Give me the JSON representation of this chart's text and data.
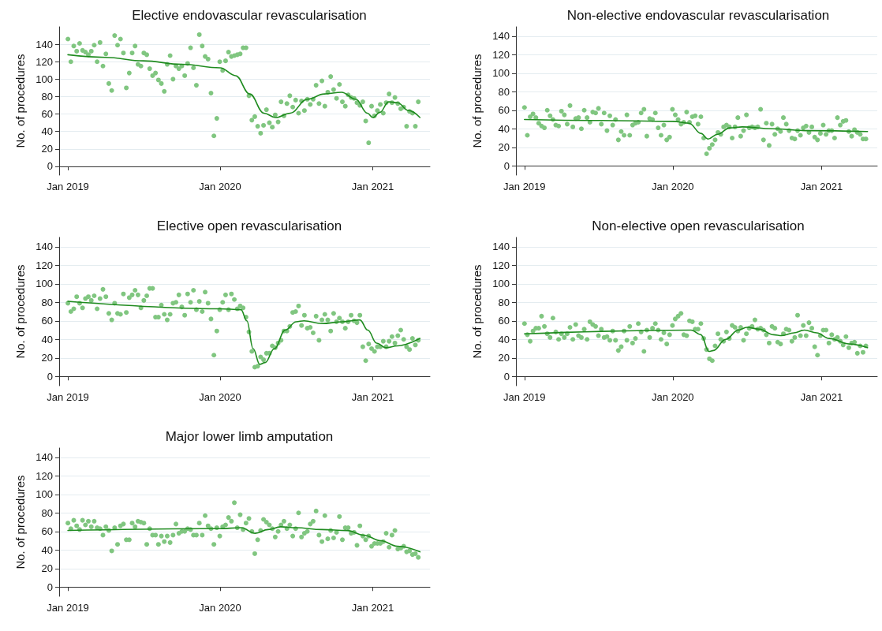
{
  "chart_data": [
    {
      "type": "scatter",
      "title": "Elective endovascular revascularisation",
      "ylabel": "No. of procedures",
      "xlim": [
        "2018-12-11",
        "2021-05-18"
      ],
      "ylim": [
        -10,
        160
      ],
      "yticks": [
        0,
        20,
        40,
        60,
        80,
        100,
        120,
        140
      ],
      "xticks": [
        {
          "value": "2019-01-01",
          "label": "Jan 2019"
        },
        {
          "value": "2020-01-01",
          "label": "Jan 2020"
        },
        {
          "value": "2021-01-01",
          "label": "Jan 2021"
        }
      ],
      "grid": "y",
      "marker": "circle",
      "x": [
        "2019-01-01",
        "2019-01-08",
        "2019-01-15",
        "2019-01-22",
        "2019-01-29",
        "2019-02-05",
        "2019-02-12",
        "2019-02-19",
        "2019-02-26",
        "2019-03-05",
        "2019-03-12",
        "2019-03-19",
        "2019-03-26",
        "2019-04-02",
        "2019-04-09",
        "2019-04-16",
        "2019-04-23",
        "2019-04-30",
        "2019-05-07",
        "2019-05-14",
        "2019-05-21",
        "2019-05-28",
        "2019-06-04",
        "2019-06-11",
        "2019-06-18",
        "2019-06-25",
        "2019-07-02",
        "2019-07-09",
        "2019-07-16",
        "2019-07-23",
        "2019-07-30",
        "2019-08-06",
        "2019-08-13",
        "2019-08-20",
        "2019-08-27",
        "2019-09-03",
        "2019-09-10",
        "2019-09-17",
        "2019-09-24",
        "2019-10-01",
        "2019-10-08",
        "2019-10-15",
        "2019-10-22",
        "2019-10-29",
        "2019-11-05",
        "2019-11-12",
        "2019-11-19",
        "2019-11-26",
        "2019-12-03",
        "2019-12-10",
        "2019-12-17",
        "2019-12-24",
        "2019-12-31",
        "2020-01-07",
        "2020-01-14",
        "2020-01-21",
        "2020-01-28",
        "2020-02-04",
        "2020-02-11",
        "2020-02-18",
        "2020-02-25",
        "2020-03-03",
        "2020-03-10",
        "2020-03-17",
        "2020-03-24",
        "2020-03-31",
        "2020-04-07",
        "2020-04-14",
        "2020-04-21",
        "2020-04-28",
        "2020-05-05",
        "2020-05-12",
        "2020-05-19",
        "2020-05-26",
        "2020-06-02",
        "2020-06-09",
        "2020-06-16",
        "2020-06-23",
        "2020-06-30",
        "2020-07-07",
        "2020-07-14",
        "2020-07-21",
        "2020-07-28",
        "2020-08-04",
        "2020-08-11",
        "2020-08-18",
        "2020-08-25",
        "2020-09-01",
        "2020-09-08",
        "2020-09-15",
        "2020-09-22",
        "2020-09-29",
        "2020-10-06",
        "2020-10-13",
        "2020-10-20",
        "2020-10-27",
        "2020-11-03",
        "2020-11-10",
        "2020-11-17",
        "2020-11-24",
        "2020-12-01",
        "2020-12-08",
        "2020-12-15",
        "2020-12-22",
        "2020-12-29",
        "2021-01-05",
        "2021-01-12",
        "2021-01-19",
        "2021-01-26",
        "2021-02-02",
        "2021-02-09",
        "2021-02-16",
        "2021-02-23",
        "2021-03-02",
        "2021-03-09",
        "2021-03-16",
        "2021-03-23",
        "2021-03-30",
        "2021-04-06",
        "2021-04-13",
        "2021-04-20"
      ],
      "series": [
        {
          "color": "#80c680",
          "values": [
            146,
            120,
            138,
            132,
            141,
            133,
            131,
            128,
            132,
            139,
            120,
            142,
            115,
            129,
            95,
            87,
            150,
            139,
            146,
            130,
            90,
            107,
            130,
            138,
            117,
            115,
            130,
            128,
            112,
            104,
            107,
            99,
            95,
            86,
            117,
            127,
            100,
            115,
            112,
            115,
            104,
            118,
            136,
            113,
            93,
            151,
            138,
            126,
            123,
            84,
            35,
            55,
            120,
            110,
            121,
            131,
            126,
            127,
            128,
            129,
            136,
            136,
            81,
            53,
            57,
            46,
            38,
            47,
            65,
            50,
            45,
            59,
            51,
            74,
            58,
            72,
            81,
            68,
            76,
            61,
            75,
            64,
            77,
            71,
            77,
            93,
            72,
            98,
            69,
            85,
            103,
            88,
            78,
            94,
            74,
            69,
            82,
            79,
            78,
            73,
            70,
            74,
            52,
            27,
            69,
            58,
            64,
            71,
            61,
            73,
            83,
            73,
            79,
            72,
            66,
            68,
            46,
            63,
            61,
            46,
            74
          ]
        },
        {
          "type": "line",
          "marker": "none",
          "color": "#1f8b1f",
          "x": [
            "2019-01-01",
            "2019-04-01",
            "2019-07-01",
            "2019-10-01",
            "2020-01-01",
            "2020-02-07",
            "2020-03-12",
            "2020-04-15",
            "2020-05-13",
            "2020-06-17",
            "2020-07-28",
            "2020-09-07",
            "2020-10-18",
            "2020-11-21",
            "2020-12-19",
            "2021-01-01",
            "2021-01-18",
            "2021-02-08",
            "2021-03-01",
            "2021-03-28",
            "2021-04-24"
          ],
          "values": [
            128,
            125,
            121,
            117,
            113,
            104,
            83,
            61,
            56,
            61,
            77,
            83,
            85,
            77,
            61,
            56,
            62,
            74,
            73,
            64,
            56
          ]
        }
      ]
    },
    {
      "type": "scatter",
      "title": "Non-elective endovascular revascularisation",
      "ylabel": "No. of procedures",
      "xlim": [
        "2018-12-11",
        "2021-05-18"
      ],
      "ylim": [
        -10,
        150
      ],
      "yticks": [
        0,
        20,
        40,
        60,
        80,
        100,
        120,
        140
      ],
      "xticks": [
        {
          "value": "2019-01-01",
          "label": "Jan 2019"
        },
        {
          "value": "2020-01-01",
          "label": "Jan 2020"
        },
        {
          "value": "2021-01-01",
          "label": "Jan 2021"
        }
      ],
      "grid": "y",
      "marker": "circle",
      "x": [
        "2019-01-01",
        "2019-01-08",
        "2019-01-15",
        "2019-01-22",
        "2019-01-29",
        "2019-02-05",
        "2019-02-12",
        "2019-02-19",
        "2019-02-26",
        "2019-03-05",
        "2019-03-12",
        "2019-03-19",
        "2019-03-26",
        "2019-04-02",
        "2019-04-09",
        "2019-04-16",
        "2019-04-23",
        "2019-04-30",
        "2019-05-07",
        "2019-05-14",
        "2019-05-21",
        "2019-05-28",
        "2019-06-04",
        "2019-06-11",
        "2019-06-18",
        "2019-06-25",
        "2019-07-02",
        "2019-07-09",
        "2019-07-16",
        "2019-07-23",
        "2019-07-30",
        "2019-08-06",
        "2019-08-13",
        "2019-08-20",
        "2019-08-27",
        "2019-09-03",
        "2019-09-10",
        "2019-09-17",
        "2019-09-24",
        "2019-10-01",
        "2019-10-08",
        "2019-10-15",
        "2019-10-22",
        "2019-10-29",
        "2019-11-05",
        "2019-11-12",
        "2019-11-19",
        "2019-11-26",
        "2019-12-03",
        "2019-12-10",
        "2019-12-17",
        "2019-12-24",
        "2019-12-31",
        "2020-01-07",
        "2020-01-14",
        "2020-01-21",
        "2020-01-28",
        "2020-02-04",
        "2020-02-11",
        "2020-02-18",
        "2020-02-25",
        "2020-03-03",
        "2020-03-10",
        "2020-03-17",
        "2020-03-24",
        "2020-03-31",
        "2020-04-07",
        "2020-04-14",
        "2020-04-21",
        "2020-04-28",
        "2020-05-05",
        "2020-05-12",
        "2020-05-19",
        "2020-05-26",
        "2020-06-02",
        "2020-06-09",
        "2020-06-16",
        "2020-06-23",
        "2020-06-30",
        "2020-07-07",
        "2020-07-14",
        "2020-07-21",
        "2020-07-28",
        "2020-08-04",
        "2020-08-11",
        "2020-08-18",
        "2020-08-25",
        "2020-09-01",
        "2020-09-08",
        "2020-09-15",
        "2020-09-22",
        "2020-09-29",
        "2020-10-06",
        "2020-10-13",
        "2020-10-20",
        "2020-10-27",
        "2020-11-03",
        "2020-11-10",
        "2020-11-17",
        "2020-11-24",
        "2020-12-01",
        "2020-12-08",
        "2020-12-15",
        "2020-12-22",
        "2020-12-29",
        "2021-01-05",
        "2021-01-12",
        "2021-01-19",
        "2021-01-26",
        "2021-02-02",
        "2021-02-09",
        "2021-02-16",
        "2021-02-23",
        "2021-03-02",
        "2021-03-09",
        "2021-03-16",
        "2021-03-23",
        "2021-03-30",
        "2021-04-06",
        "2021-04-13",
        "2021-04-20"
      ],
      "series": [
        {
          "color": "#80c680",
          "values": [
            63,
            33,
            53,
            56,
            52,
            46,
            43,
            41,
            60,
            54,
            50,
            44,
            43,
            59,
            55,
            45,
            65,
            42,
            51,
            52,
            40,
            60,
            52,
            47,
            58,
            57,
            62,
            45,
            57,
            38,
            54,
            44,
            50,
            28,
            37,
            33,
            55,
            33,
            44,
            46,
            47,
            57,
            61,
            32,
            51,
            50,
            57,
            41,
            33,
            44,
            28,
            31,
            61,
            55,
            50,
            45,
            47,
            58,
            47,
            53,
            54,
            45,
            53,
            30,
            13,
            19,
            23,
            28,
            36,
            34,
            42,
            44,
            42,
            30,
            42,
            52,
            32,
            38,
            55,
            41,
            42,
            41,
            42,
            61,
            28,
            46,
            22,
            45,
            34,
            40,
            37,
            52,
            45,
            38,
            30,
            29,
            38,
            33,
            41,
            43,
            36,
            42,
            31,
            28,
            35,
            44,
            34,
            38,
            38,
            30,
            52,
            44,
            48,
            49,
            37,
            32,
            39,
            36,
            34,
            29,
            29
          ]
        },
        {
          "type": "line",
          "marker": "none",
          "color": "#1f8b1f",
          "x": [
            "2019-01-01",
            "2019-07-01",
            "2020-01-01",
            "2020-02-10",
            "2020-03-10",
            "2020-03-28",
            "2020-04-20",
            "2020-05-20",
            "2020-06-20",
            "2020-09-01",
            "2020-12-01",
            "2021-04-24"
          ],
          "values": [
            50,
            49,
            48,
            46,
            35,
            29,
            34,
            41,
            42,
            40,
            38,
            37
          ]
        }
      ]
    },
    {
      "type": "scatter",
      "title": "Elective open revascularisation",
      "ylabel": "No. of procedures",
      "xlim": [
        "2018-12-11",
        "2021-05-18"
      ],
      "ylim": [
        -10,
        150
      ],
      "yticks": [
        0,
        20,
        40,
        60,
        80,
        100,
        120,
        140
      ],
      "xticks": [
        {
          "value": "2019-01-01",
          "label": "Jan 2019"
        },
        {
          "value": "2020-01-01",
          "label": "Jan 2020"
        },
        {
          "value": "2021-01-01",
          "label": "Jan 2021"
        }
      ],
      "grid": "y",
      "marker": "circle",
      "x": [
        "2019-01-01",
        "2019-01-08",
        "2019-01-15",
        "2019-01-22",
        "2019-01-29",
        "2019-02-05",
        "2019-02-12",
        "2019-02-19",
        "2019-02-26",
        "2019-03-05",
        "2019-03-12",
        "2019-03-19",
        "2019-03-26",
        "2019-04-02",
        "2019-04-09",
        "2019-04-16",
        "2019-04-23",
        "2019-04-30",
        "2019-05-07",
        "2019-05-14",
        "2019-05-21",
        "2019-05-28",
        "2019-06-04",
        "2019-06-11",
        "2019-06-18",
        "2019-06-25",
        "2019-07-02",
        "2019-07-09",
        "2019-07-16",
        "2019-07-23",
        "2019-07-30",
        "2019-08-06",
        "2019-08-13",
        "2019-08-20",
        "2019-08-27",
        "2019-09-03",
        "2019-09-10",
        "2019-09-17",
        "2019-09-24",
        "2019-10-01",
        "2019-10-08",
        "2019-10-15",
        "2019-10-22",
        "2019-10-29",
        "2019-11-05",
        "2019-11-12",
        "2019-11-19",
        "2019-11-26",
        "2019-12-03",
        "2019-12-10",
        "2019-12-17",
        "2019-12-24",
        "2019-12-31",
        "2020-01-07",
        "2020-01-14",
        "2020-01-21",
        "2020-01-28",
        "2020-02-04",
        "2020-02-11",
        "2020-02-18",
        "2020-02-25",
        "2020-03-03",
        "2020-03-10",
        "2020-03-17",
        "2020-03-24",
        "2020-03-31",
        "2020-04-07",
        "2020-04-14",
        "2020-04-21",
        "2020-04-28",
        "2020-05-05",
        "2020-05-12",
        "2020-05-19",
        "2020-05-26",
        "2020-06-02",
        "2020-06-09",
        "2020-06-16",
        "2020-06-23",
        "2020-06-30",
        "2020-07-07",
        "2020-07-14",
        "2020-07-21",
        "2020-07-28",
        "2020-08-04",
        "2020-08-11",
        "2020-08-18",
        "2020-08-25",
        "2020-09-01",
        "2020-09-08",
        "2020-09-15",
        "2020-09-22",
        "2020-09-29",
        "2020-10-06",
        "2020-10-13",
        "2020-10-20",
        "2020-10-27",
        "2020-11-03",
        "2020-11-10",
        "2020-11-17",
        "2020-11-24",
        "2020-12-01",
        "2020-12-08",
        "2020-12-15",
        "2020-12-22",
        "2020-12-29",
        "2021-01-05",
        "2021-01-12",
        "2021-01-19",
        "2021-01-26",
        "2021-02-02",
        "2021-02-09",
        "2021-02-16",
        "2021-02-23",
        "2021-03-02",
        "2021-03-09",
        "2021-03-16",
        "2021-03-23",
        "2021-03-30",
        "2021-04-06",
        "2021-04-13",
        "2021-04-20"
      ],
      "series": [
        {
          "color": "#80c680",
          "values": [
            79,
            70,
            73,
            86,
            79,
            74,
            84,
            86,
            82,
            87,
            73,
            84,
            94,
            86,
            68,
            61,
            79,
            68,
            67,
            89,
            69,
            85,
            88,
            93,
            88,
            74,
            82,
            87,
            95,
            95,
            64,
            64,
            77,
            67,
            61,
            67,
            79,
            80,
            88,
            75,
            66,
            89,
            80,
            93,
            72,
            81,
            70,
            91,
            79,
            62,
            23,
            49,
            72,
            80,
            88,
            72,
            89,
            83,
            73,
            76,
            74,
            64,
            48,
            27,
            10,
            11,
            21,
            18,
            25,
            25,
            33,
            31,
            36,
            39,
            49,
            49,
            54,
            69,
            70,
            76,
            55,
            66,
            52,
            53,
            47,
            65,
            39,
            61,
            67,
            61,
            49,
            68,
            59,
            63,
            59,
            52,
            59,
            66,
            60,
            58,
            66,
            32,
            17,
            35,
            30,
            27,
            32,
            32,
            38,
            32,
            38,
            43,
            36,
            44,
            50,
            40,
            32,
            29,
            41,
            34,
            39
          ]
        },
        {
          "type": "line",
          "marker": "none",
          "color": "#1f8b1f",
          "x": [
            "2019-01-01",
            "2019-12-31",
            "2020-02-20",
            "2020-03-05",
            "2020-03-20",
            "2020-04-05",
            "2020-04-18",
            "2020-05-10",
            "2020-06-05",
            "2020-07-01",
            "2020-07-20",
            "2020-09-01",
            "2020-10-20",
            "2020-12-01",
            "2020-12-20",
            "2021-01-10",
            "2021-02-01",
            "2021-03-01",
            "2021-04-24"
          ],
          "values": [
            81,
            73,
            72,
            60,
            30,
            13,
            15,
            30,
            50,
            59,
            60,
            57,
            59,
            61,
            50,
            36,
            31,
            33,
            41
          ]
        }
      ]
    },
    {
      "type": "scatter",
      "title": "Non-elective open revascularisation",
      "ylabel": "No. of procedures",
      "xlim": [
        "2018-12-11",
        "2021-05-18"
      ],
      "ylim": [
        -10,
        150
      ],
      "yticks": [
        0,
        20,
        40,
        60,
        80,
        100,
        120,
        140
      ],
      "xticks": [
        {
          "value": "2019-01-01",
          "label": "Jan 2019"
        },
        {
          "value": "2020-01-01",
          "label": "Jan 2020"
        },
        {
          "value": "2021-01-01",
          "label": "Jan 2021"
        }
      ],
      "grid": "y",
      "marker": "circle",
      "x": [
        "2019-01-01",
        "2019-01-08",
        "2019-01-15",
        "2019-01-22",
        "2019-01-29",
        "2019-02-05",
        "2019-02-12",
        "2019-02-19",
        "2019-02-26",
        "2019-03-05",
        "2019-03-12",
        "2019-03-19",
        "2019-03-26",
        "2019-04-02",
        "2019-04-09",
        "2019-04-16",
        "2019-04-23",
        "2019-04-30",
        "2019-05-07",
        "2019-05-14",
        "2019-05-21",
        "2019-05-28",
        "2019-06-04",
        "2019-06-11",
        "2019-06-18",
        "2019-06-25",
        "2019-07-02",
        "2019-07-09",
        "2019-07-16",
        "2019-07-23",
        "2019-07-30",
        "2019-08-06",
        "2019-08-13",
        "2019-08-20",
        "2019-08-27",
        "2019-09-03",
        "2019-09-10",
        "2019-09-17",
        "2019-09-24",
        "2019-10-01",
        "2019-10-08",
        "2019-10-15",
        "2019-10-22",
        "2019-10-29",
        "2019-11-05",
        "2019-11-12",
        "2019-11-19",
        "2019-11-26",
        "2019-12-03",
        "2019-12-10",
        "2019-12-17",
        "2019-12-24",
        "2019-12-31",
        "2020-01-07",
        "2020-01-14",
        "2020-01-21",
        "2020-01-28",
        "2020-02-04",
        "2020-02-11",
        "2020-02-18",
        "2020-02-25",
        "2020-03-03",
        "2020-03-10",
        "2020-03-17",
        "2020-03-24",
        "2020-03-31",
        "2020-04-07",
        "2020-04-14",
        "2020-04-21",
        "2020-04-28",
        "2020-05-05",
        "2020-05-12",
        "2020-05-19",
        "2020-05-26",
        "2020-06-02",
        "2020-06-09",
        "2020-06-16",
        "2020-06-23",
        "2020-06-30",
        "2020-07-07",
        "2020-07-14",
        "2020-07-21",
        "2020-07-28",
        "2020-08-04",
        "2020-08-11",
        "2020-08-18",
        "2020-08-25",
        "2020-09-01",
        "2020-09-08",
        "2020-09-15",
        "2020-09-22",
        "2020-09-29",
        "2020-10-06",
        "2020-10-13",
        "2020-10-20",
        "2020-10-27",
        "2020-11-03",
        "2020-11-10",
        "2020-11-17",
        "2020-11-24",
        "2020-12-01",
        "2020-12-08",
        "2020-12-15",
        "2020-12-22",
        "2020-12-29",
        "2021-01-05",
        "2021-01-12",
        "2021-01-19",
        "2021-01-26",
        "2021-02-02",
        "2021-02-09",
        "2021-02-16",
        "2021-02-23",
        "2021-03-02",
        "2021-03-09",
        "2021-03-16",
        "2021-03-23",
        "2021-03-30",
        "2021-04-06",
        "2021-04-13",
        "2021-04-20"
      ],
      "series": [
        {
          "color": "#80c680",
          "values": [
            57,
            45,
            38,
            49,
            52,
            52,
            65,
            54,
            46,
            42,
            63,
            48,
            40,
            46,
            42,
            46,
            53,
            40,
            56,
            44,
            42,
            51,
            40,
            59,
            56,
            54,
            44,
            51,
            42,
            43,
            39,
            49,
            39,
            28,
            32,
            49,
            39,
            54,
            36,
            41,
            57,
            48,
            27,
            50,
            42,
            52,
            57,
            50,
            40,
            47,
            35,
            45,
            55,
            62,
            65,
            68,
            45,
            44,
            60,
            59,
            51,
            51,
            57,
            41,
            29,
            19,
            17,
            33,
            46,
            40,
            38,
            48,
            41,
            55,
            53,
            49,
            53,
            39,
            46,
            52,
            54,
            61,
            51,
            52,
            50,
            45,
            36,
            54,
            52,
            37,
            35,
            46,
            51,
            50,
            38,
            42,
            66,
            44,
            55,
            44,
            58,
            52,
            32,
            23,
            44,
            50,
            50,
            36,
            45,
            40,
            42,
            38,
            34,
            43,
            31,
            36,
            37,
            25,
            33,
            26,
            33
          ]
        },
        {
          "type": "line",
          "marker": "none",
          "color": "#1f8b1f",
          "x": [
            "2019-01-01",
            "2020-02-15",
            "2020-03-10",
            "2020-03-30",
            "2020-04-10",
            "2020-05-10",
            "2020-06-10",
            "2020-07-01",
            "2020-08-01",
            "2020-09-05",
            "2020-09-25",
            "2020-10-25",
            "2020-11-20",
            "2020-12-20",
            "2021-01-20",
            "2021-03-10",
            "2021-04-24"
          ],
          "values": [
            46,
            50,
            45,
            27,
            28,
            40,
            50,
            53,
            51,
            45,
            44,
            47,
            50,
            47,
            41,
            35,
            31
          ]
        }
      ]
    },
    {
      "type": "scatter",
      "title": "Major lower limb amputation",
      "ylabel": "No. of procedures",
      "xlim": [
        "2018-12-11",
        "2021-05-18"
      ],
      "ylim": [
        -10,
        150
      ],
      "yticks": [
        0,
        20,
        40,
        60,
        80,
        100,
        120,
        140
      ],
      "xticks": [
        {
          "value": "2019-01-01",
          "label": "Jan 2019"
        },
        {
          "value": "2020-01-01",
          "label": "Jan 2020"
        },
        {
          "value": "2021-01-01",
          "label": "Jan 2021"
        }
      ],
      "grid": "y",
      "marker": "circle",
      "x": [
        "2019-01-01",
        "2019-01-08",
        "2019-01-15",
        "2019-01-22",
        "2019-01-29",
        "2019-02-05",
        "2019-02-12",
        "2019-02-19",
        "2019-02-26",
        "2019-03-05",
        "2019-03-12",
        "2019-03-19",
        "2019-03-26",
        "2019-04-02",
        "2019-04-09",
        "2019-04-16",
        "2019-04-23",
        "2019-04-30",
        "2019-05-07",
        "2019-05-14",
        "2019-05-21",
        "2019-05-28",
        "2019-06-04",
        "2019-06-11",
        "2019-06-18",
        "2019-06-25",
        "2019-07-02",
        "2019-07-09",
        "2019-07-16",
        "2019-07-23",
        "2019-07-30",
        "2019-08-06",
        "2019-08-13",
        "2019-08-20",
        "2019-08-27",
        "2019-09-03",
        "2019-09-10",
        "2019-09-17",
        "2019-09-24",
        "2019-10-01",
        "2019-10-08",
        "2019-10-15",
        "2019-10-22",
        "2019-10-29",
        "2019-11-05",
        "2019-11-12",
        "2019-11-19",
        "2019-11-26",
        "2019-12-03",
        "2019-12-10",
        "2019-12-17",
        "2019-12-24",
        "2019-12-31",
        "2020-01-07",
        "2020-01-14",
        "2020-01-21",
        "2020-01-28",
        "2020-02-04",
        "2020-02-11",
        "2020-02-18",
        "2020-02-25",
        "2020-03-03",
        "2020-03-10",
        "2020-03-17",
        "2020-03-24",
        "2020-03-31",
        "2020-04-07",
        "2020-04-14",
        "2020-04-21",
        "2020-04-28",
        "2020-05-05",
        "2020-05-12",
        "2020-05-19",
        "2020-05-26",
        "2020-06-02",
        "2020-06-09",
        "2020-06-16",
        "2020-06-23",
        "2020-06-30",
        "2020-07-07",
        "2020-07-14",
        "2020-07-21",
        "2020-07-28",
        "2020-08-04",
        "2020-08-11",
        "2020-08-18",
        "2020-08-25",
        "2020-09-01",
        "2020-09-08",
        "2020-09-15",
        "2020-09-22",
        "2020-09-29",
        "2020-10-06",
        "2020-10-13",
        "2020-10-20",
        "2020-10-27",
        "2020-11-03",
        "2020-11-10",
        "2020-11-17",
        "2020-11-24",
        "2020-12-01",
        "2020-12-08",
        "2020-12-15",
        "2020-12-22",
        "2020-12-29",
        "2021-01-05",
        "2021-01-12",
        "2021-01-19",
        "2021-01-26",
        "2021-02-02",
        "2021-02-09",
        "2021-02-16",
        "2021-02-23",
        "2021-03-02",
        "2021-03-09",
        "2021-03-16",
        "2021-03-23",
        "2021-03-30",
        "2021-04-06",
        "2021-04-13",
        "2021-04-20"
      ],
      "series": [
        {
          "color": "#80c680",
          "values": [
            69,
            63,
            72,
            66,
            62,
            72,
            67,
            71,
            65,
            71,
            64,
            63,
            56,
            65,
            61,
            39,
            64,
            46,
            66,
            68,
            51,
            51,
            69,
            65,
            71,
            70,
            69,
            46,
            63,
            56,
            56,
            46,
            55,
            49,
            55,
            48,
            56,
            68,
            58,
            60,
            60,
            63,
            62,
            56,
            56,
            69,
            56,
            77,
            66,
            63,
            46,
            64,
            55,
            65,
            67,
            75,
            71,
            91,
            64,
            78,
            62,
            69,
            74,
            60,
            36,
            51,
            61,
            73,
            70,
            67,
            63,
            54,
            60,
            67,
            71,
            63,
            67,
            55,
            63,
            80,
            54,
            58,
            60,
            68,
            71,
            82,
            56,
            49,
            77,
            52,
            61,
            53,
            59,
            76,
            51,
            64,
            64,
            58,
            59,
            45,
            66,
            55,
            51,
            55,
            44,
            47,
            47,
            47,
            49,
            58,
            43,
            56,
            61,
            41,
            42,
            44,
            38,
            39,
            35,
            36,
            32
          ]
        },
        {
          "type": "line",
          "marker": "none",
          "color": "#1f8b1f",
          "x": [
            "2019-01-01",
            "2019-12-31",
            "2020-02-20",
            "2020-03-25",
            "2020-04-25",
            "2020-05-25",
            "2020-07-01",
            "2020-09-01",
            "2020-11-01",
            "2020-12-10",
            "2021-01-20",
            "2021-03-01",
            "2021-04-24"
          ],
          "values": [
            61,
            63,
            64,
            58,
            62,
            65,
            64,
            62,
            61,
            56,
            50,
            44,
            38
          ]
        }
      ]
    }
  ]
}
